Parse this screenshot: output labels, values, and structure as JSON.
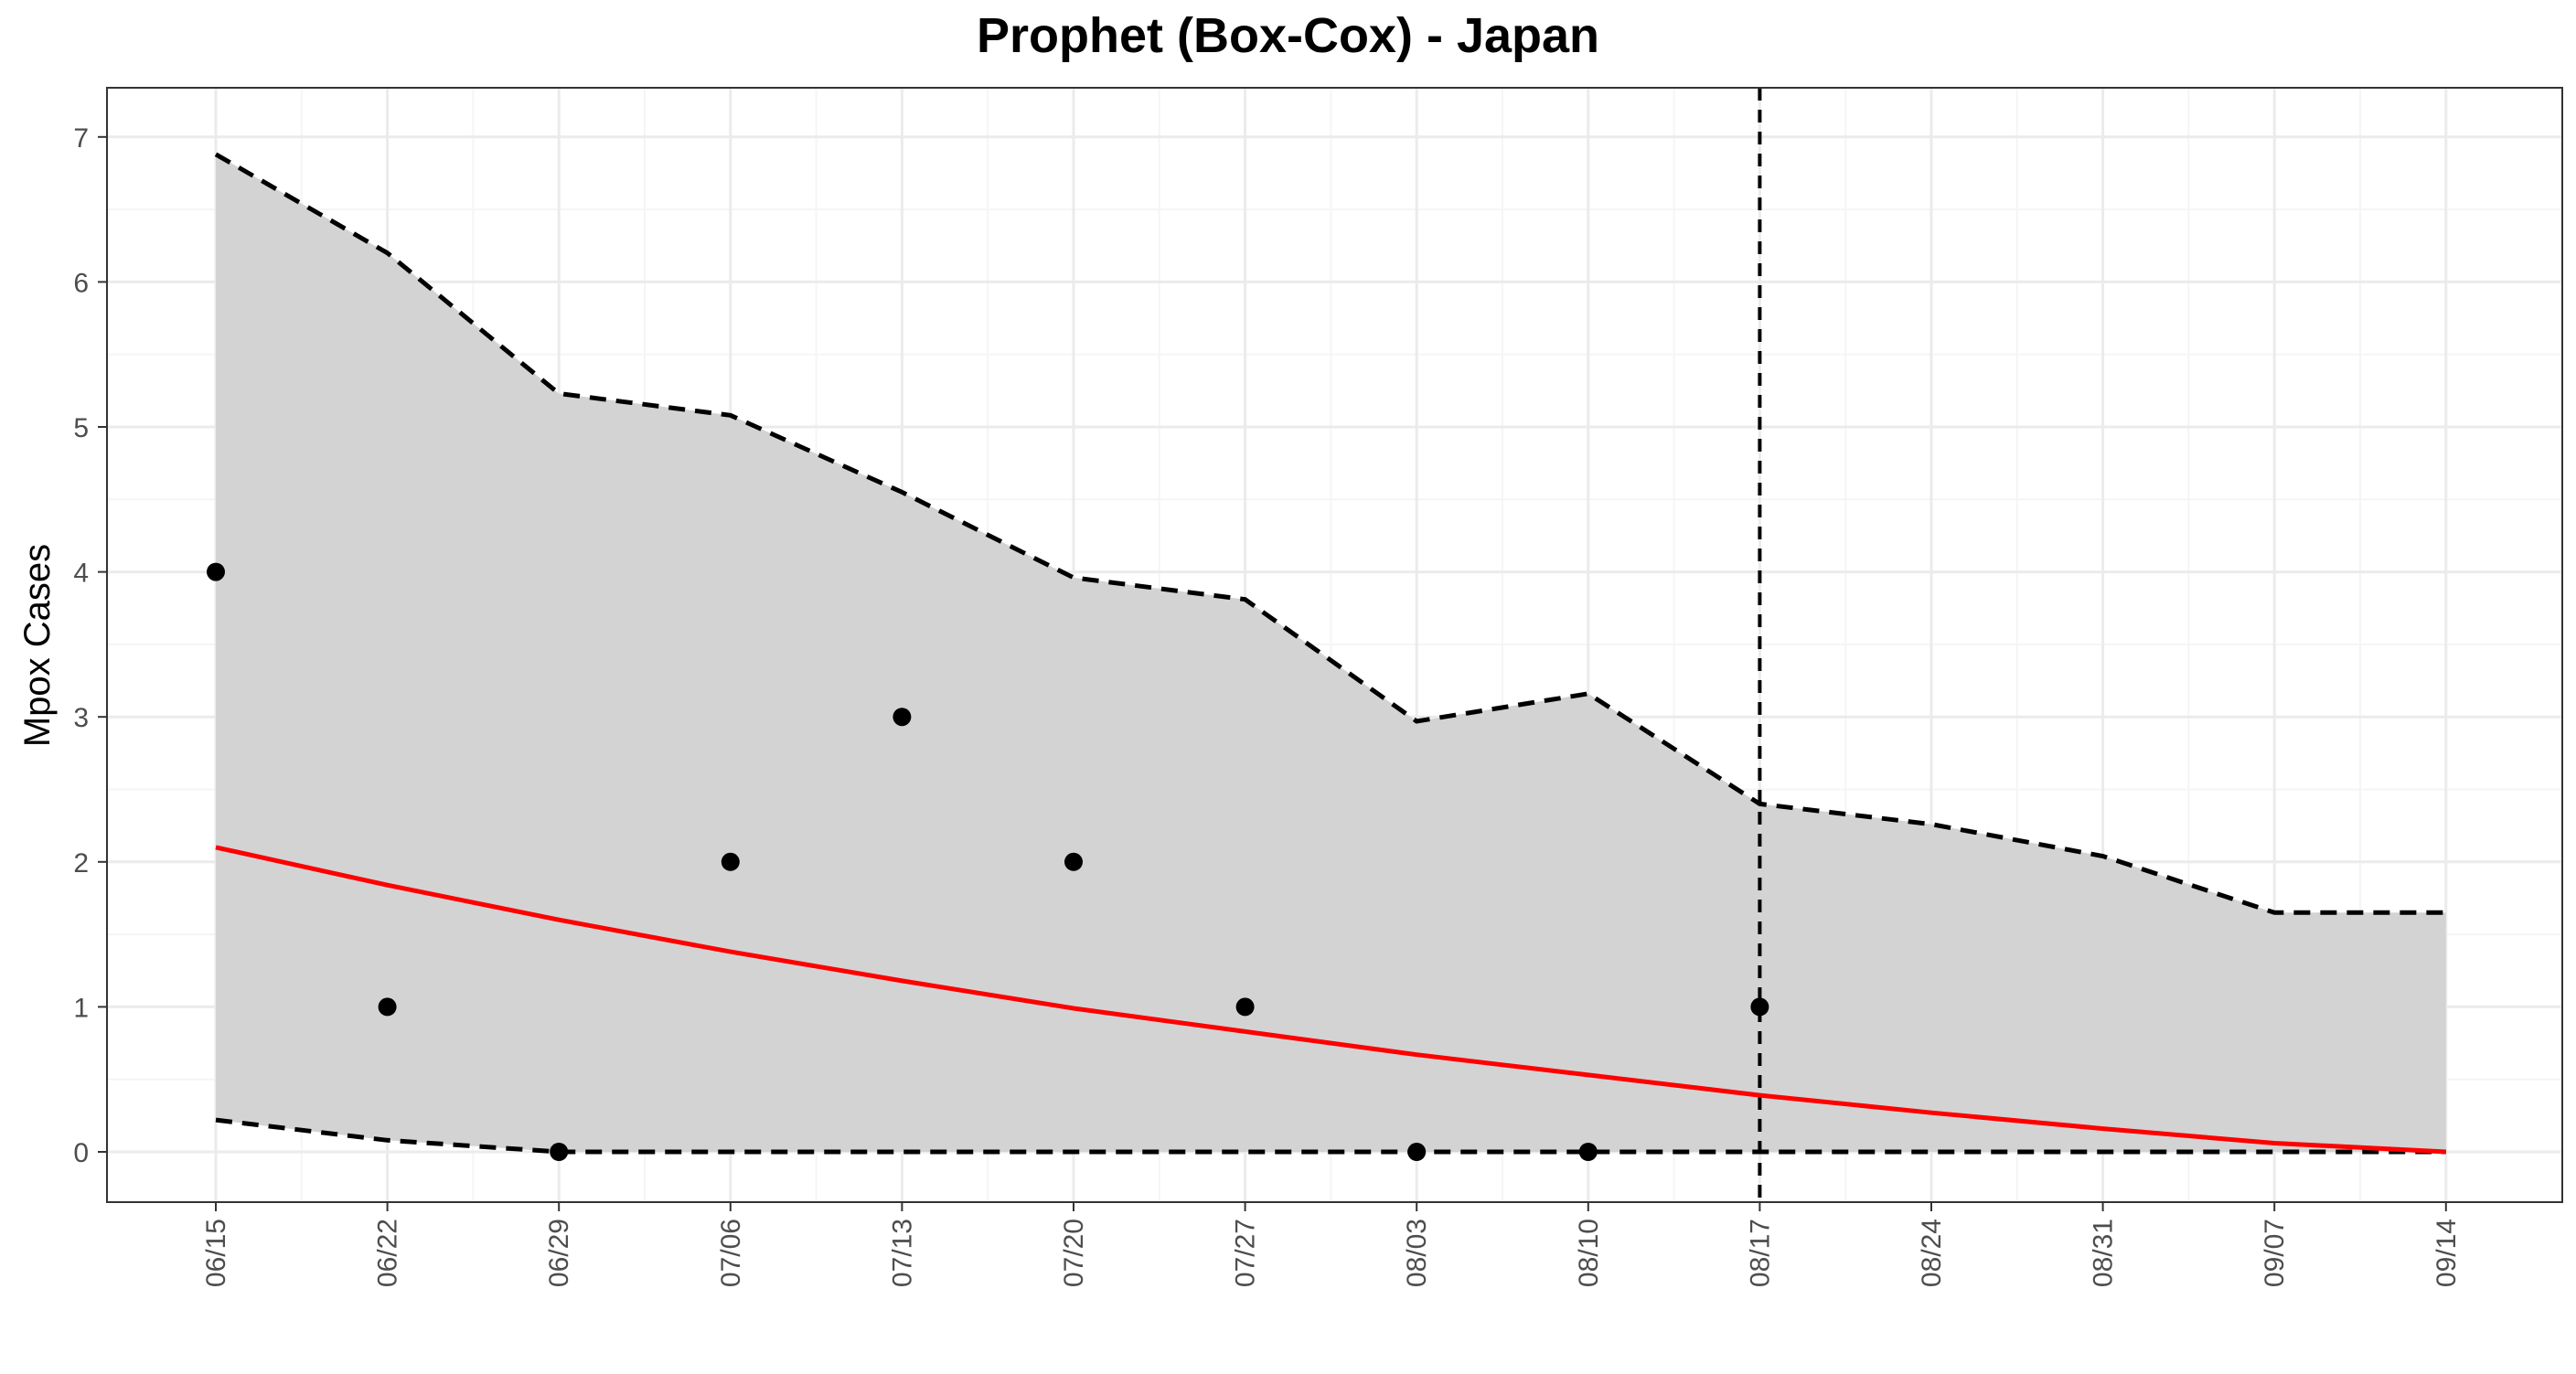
{
  "chart_data": {
    "type": "line",
    "title": "Prophet (Box-Cox) - Japan",
    "xlabel": "",
    "ylabel": "Mpox Cases",
    "x": [
      "06/15",
      "06/22",
      "06/29",
      "07/06",
      "07/13",
      "07/20",
      "07/27",
      "08/03",
      "08/10",
      "08/17",
      "08/24",
      "08/31",
      "09/07",
      "09/14"
    ],
    "ylim": [
      -0.35,
      7.35
    ],
    "yticks": [
      0,
      1,
      2,
      3,
      4,
      5,
      6,
      7
    ],
    "grid": true,
    "legend": "none",
    "forecast_start": "08/17",
    "series": [
      {
        "role": "observed",
        "style": "points",
        "color": "#000000",
        "x": [
          "06/15",
          "06/22",
          "06/29",
          "07/06",
          "07/13",
          "07/20",
          "07/27",
          "08/03",
          "08/10",
          "08/17"
        ],
        "values": [
          4,
          1,
          0,
          2,
          3,
          2,
          1,
          0,
          0,
          1
        ]
      },
      {
        "role": "fitted",
        "style": "line",
        "color": "#ff0000",
        "values": [
          2.1,
          1.84,
          1.6,
          1.38,
          1.18,
          0.99,
          0.83,
          0.67,
          0.53,
          0.39,
          0.27,
          0.16,
          0.06,
          0.0
        ]
      },
      {
        "role": "upper",
        "style": "dashed",
        "color": "#000000",
        "values": [
          6.88,
          6.2,
          5.23,
          5.08,
          4.55,
          3.96,
          3.81,
          2.97,
          3.16,
          2.4,
          2.26,
          2.04,
          1.65,
          1.65
        ]
      },
      {
        "role": "lower",
        "style": "dashed",
        "color": "#000000",
        "values": [
          0.22,
          0.08,
          0.0,
          0.0,
          0.0,
          0.0,
          0.0,
          0.0,
          0.0,
          0.0,
          0.0,
          0.0,
          0.0,
          0.0
        ]
      }
    ],
    "colors": {
      "ribbon": "#d3d3d3",
      "grid_major": "#ebebeb",
      "grid_minor": "#f5f5f5",
      "panel_border": "#333333"
    }
  }
}
